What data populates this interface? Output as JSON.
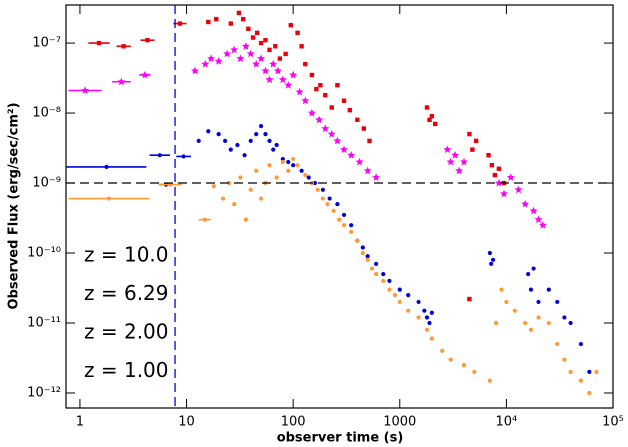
{
  "chart_data": {
    "type": "scatter",
    "xlabel": "observer time (s)",
    "ylabel": "Observed Flux (erg/sec/cm²)",
    "log_x": true,
    "log_y": true,
    "xlim": [
      0.74,
      100000
    ],
    "ylim": [
      6.1e-13,
      3.5e-07
    ],
    "xticks": [
      1,
      10,
      100,
      1000,
      {
        "value": 10000,
        "label": "10⁴"
      },
      {
        "value": 100000,
        "label": "10⁵"
      }
    ],
    "yticks": [
      {
        "value": 1e-12,
        "label": "10⁻¹²"
      },
      {
        "value": 1e-11,
        "label": "10⁻¹¹"
      },
      {
        "value": 1e-10,
        "label": "10⁻¹⁰"
      },
      {
        "value": 1e-09,
        "label": "10⁻⁹"
      },
      {
        "value": 1e-08,
        "label": "10⁻⁸"
      },
      {
        "value": 1e-07,
        "label": "10⁻⁷"
      }
    ],
    "reference_lines": [
      {
        "axis": "y",
        "value": 1e-09,
        "color": "#000000"
      },
      {
        "axis": "x",
        "value": 7.8,
        "color": "#0000dd"
      }
    ],
    "series": [
      {
        "name": "z = 10.0",
        "color": "#ff9933",
        "marker": "circle",
        "x": [
          18,
          22,
          25,
          28,
          32,
          36,
          40,
          45,
          50,
          55,
          60,
          70,
          80,
          90,
          100,
          110,
          130,
          150,
          170,
          190,
          210,
          240,
          270,
          300,
          350,
          400,
          450,
          500,
          550,
          600,
          700,
          800,
          900,
          1000,
          1200,
          1500,
          1800,
          2000,
          2500,
          3000,
          4000,
          5000,
          7000,
          8000,
          9000,
          10000,
          12000,
          15000,
          17000,
          20000,
          25000,
          30000,
          35000,
          40000,
          50000,
          60000,
          70000
        ],
        "values": [
          9e-10,
          6e-10,
          1e-09,
          5e-10,
          1.2e-09,
          3e-10,
          8e-10,
          1.5e-09,
          6e-10,
          1e-09,
          1.8e-09,
          1.2e-09,
          2e-09,
          1.5e-09,
          2.2e-09,
          1.8e-09,
          1.3e-09,
          1e-09,
          8e-10,
          6e-10,
          5e-10,
          4e-10,
          3e-10,
          2.5e-10,
          2e-10,
          1.5e-10,
          1e-10,
          8e-11,
          6e-11,
          5e-11,
          4e-11,
          3e-11,
          2.5e-11,
          2e-11,
          1.5e-11,
          1.2e-11,
          8e-12,
          6e-12,
          4e-12,
          3e-12,
          2.5e-12,
          2e-12,
          1.5e-12,
          1e-11,
          3e-11,
          2e-11,
          1.5e-11,
          1e-11,
          8e-12,
          1.2e-11,
          1e-11,
          5e-12,
          3e-12,
          2e-12,
          1.5e-12,
          1e-12,
          2e-12
        ],
        "binned": {
          "x_start": [
            0.78,
            5.5,
            13
          ],
          "x_end": [
            4.5,
            9,
            17
          ],
          "values": [
            6e-10,
            9.5e-10,
            3e-10
          ]
        }
      },
      {
        "name": "z = 6.29",
        "color": "#0000dd",
        "marker": "circle",
        "x": [
          13,
          16,
          20,
          23,
          26,
          30,
          35,
          40,
          45,
          50,
          55,
          60,
          65,
          70,
          80,
          90,
          100,
          120,
          140,
          160,
          190,
          220,
          260,
          300,
          350,
          400,
          450,
          500,
          600,
          700,
          800,
          1000,
          1200,
          1500,
          1700,
          1800,
          1900,
          2000,
          7000,
          7200,
          7500,
          16000,
          17000,
          18000,
          20000,
          25000,
          30000,
          35000,
          40000,
          50000,
          60000
        ],
        "values": [
          4e-09,
          5.5e-09,
          5e-09,
          4e-09,
          3e-09,
          3.5e-09,
          2.5e-09,
          4e-09,
          5e-09,
          6.5e-09,
          5e-09,
          4e-09,
          3e-09,
          3.5e-09,
          2.2e-09,
          2e-09,
          1.8e-09,
          1.5e-09,
          1.2e-09,
          1e-09,
          8e-10,
          6e-10,
          5e-10,
          3.5e-10,
          2.5e-10,
          1.5e-10,
          1.2e-10,
          9e-11,
          7e-11,
          5e-11,
          4e-11,
          3e-11,
          2.5e-11,
          2e-11,
          1.5e-11,
          1.2e-11,
          1e-11,
          1.4e-11,
          1e-10,
          7e-11,
          8e-11,
          5e-11,
          3e-11,
          6e-11,
          2e-11,
          3e-11,
          2e-11,
          1.2e-11,
          1e-11,
          5e-12,
          2e-12
        ],
        "binned": {
          "x_start": [
            0.75,
            4.5,
            8,
            5.5
          ],
          "x_end": [
            4.2,
            7,
            11,
            7.5
          ],
          "values": [
            1.7e-09,
            2.5e-09,
            2.4e-09,
            9.5e-10
          ]
        }
      },
      {
        "name": "z = 2.00",
        "color": "#ff00ff",
        "marker": "star",
        "x": [
          12,
          15,
          17,
          20,
          24,
          28,
          32,
          36,
          40,
          45,
          50,
          55,
          60,
          65,
          72,
          80,
          90,
          100,
          115,
          130,
          150,
          175,
          200,
          230,
          260,
          300,
          350,
          420,
          500,
          600,
          2800,
          3000,
          3300,
          3600,
          4000,
          8500,
          9500,
          11000,
          13000,
          15000,
          18000,
          20000,
          22000
        ],
        "values": [
          4e-08,
          5e-08,
          6e-08,
          5.5e-08,
          7e-08,
          8e-08,
          6e-08,
          9e-08,
          7e-08,
          5e-08,
          6e-08,
          4e-08,
          3e-08,
          5e-08,
          4e-08,
          3e-08,
          2.5e-08,
          3.5e-08,
          2e-08,
          1.5e-08,
          1e-08,
          8e-09,
          6e-09,
          5e-09,
          4e-09,
          3e-09,
          2.5e-09,
          2e-09,
          1.5e-09,
          1.2e-09,
          3e-09,
          2e-09,
          2.5e-09,
          1.5e-09,
          2e-09,
          1e-09,
          7e-10,
          1.2e-09,
          8e-10,
          5e-10,
          4e-10,
          3e-10,
          2.5e-10
        ],
        "binned": {
          "x_start": [
            0.78,
            2.0,
            3.6
          ],
          "x_end": [
            1.6,
            3.0,
            4.6
          ],
          "values": [
            2.1e-08,
            2.8e-08,
            3.5e-08
          ]
        }
      },
      {
        "name": "z = 1.00",
        "color": "#e8000b",
        "marker": "square",
        "x": [
          16,
          19,
          26,
          31,
          34,
          38,
          42,
          46,
          50,
          55,
          60,
          68,
          75,
          85,
          95,
          110,
          120,
          130,
          150,
          165,
          180,
          200,
          230,
          260,
          300,
          340,
          400,
          460,
          520,
          1800,
          1900,
          2000,
          2150,
          4500,
          4800,
          5200,
          6800,
          7300,
          7800,
          8500,
          9500,
          4500
        ],
        "values": [
          2e-07,
          2.2e-07,
          1.9e-07,
          2.7e-07,
          2.2e-07,
          1.6e-07,
          1.2e-07,
          1.4e-07,
          1e-07,
          1.1e-07,
          8e-08,
          9e-08,
          6e-08,
          7e-08,
          1.8e-07,
          1.4e-07,
          9e-08,
          5e-08,
          3.5e-08,
          2.2e-08,
          2.5e-08,
          1.8e-08,
          1.2e-08,
          2.5e-08,
          1.5e-08,
          1.1e-08,
          8e-09,
          6e-09,
          4e-09,
          1.2e-08,
          8e-09,
          9e-09,
          7e-09,
          5e-09,
          3e-09,
          4e-09,
          2.5e-09,
          1.8e-09,
          1.3e-09,
          1.6e-09,
          1e-09,
          2.2e-11
        ],
        "binned": {
          "x_start": [
            1.2,
            2.2,
            3.7,
            7.5
          ],
          "x_end": [
            1.9,
            3.0,
            5.0,
            10
          ],
          "values": [
            1e-07,
            9e-08,
            1.1e-07,
            1.9e-07
          ]
        }
      }
    ]
  }
}
